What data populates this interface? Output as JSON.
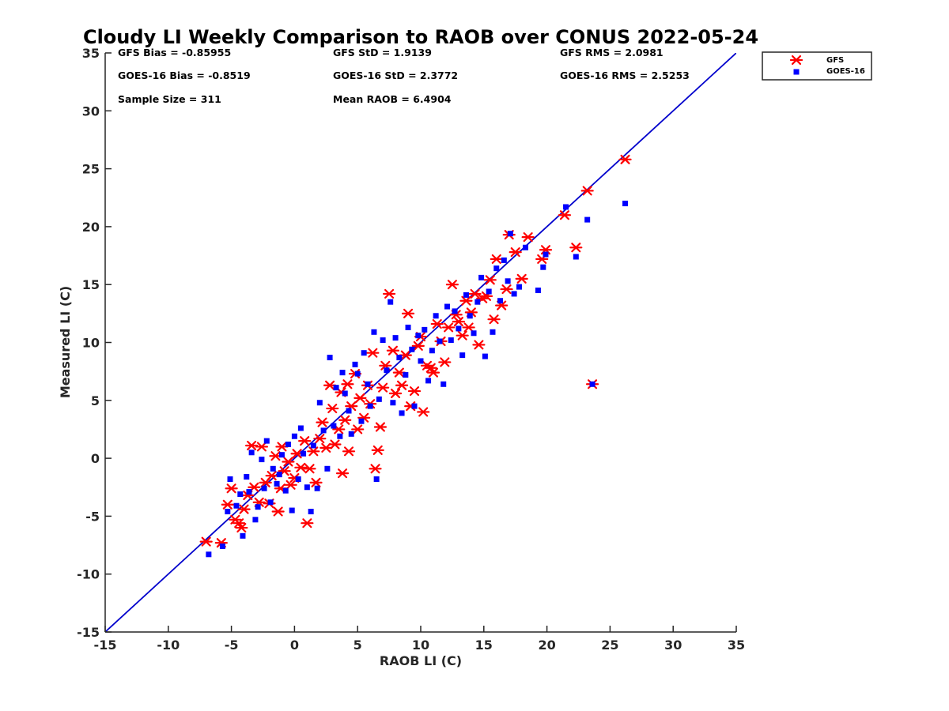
{
  "chart_data": {
    "type": "scatter",
    "title": "Cloudy LI Weekly Comparison to RAOB over CONUS 2022-05-24",
    "xlabel": "RAOB LI (C)",
    "ylabel": "Measured LI (C)",
    "xlim": [
      -15,
      35
    ],
    "ylim": [
      -15,
      35
    ],
    "xticks": [
      "-15",
      "-10",
      "-5",
      "0",
      "5",
      "10",
      "15",
      "20",
      "25",
      "30",
      "35"
    ],
    "yticks": [
      "-15",
      "-10",
      "-5",
      "0",
      "5",
      "10",
      "15",
      "20",
      "25",
      "30",
      "35"
    ],
    "grid": false,
    "legend_position": "top-right, outside axes",
    "reference_line": {
      "type": "one-to-one",
      "color": "#0000cc"
    },
    "stats": [
      "GFS Bias = -0.85955",
      "GFS StD = 1.9139",
      "GFS RMS = 2.0981",
      "GOES-16 Bias = -0.8519",
      "GOES-16 StD = 2.3772",
      "GOES-16 RMS = 2.5253",
      "Sample Size = 311",
      "Mean RAOB = 6.4904"
    ],
    "series": [
      {
        "name": "GFS",
        "marker": "asterisk",
        "color": "#ff0000",
        "points": [
          [
            -7,
            -7.2
          ],
          [
            -5.8,
            -7.3
          ],
          [
            -5.3,
            -4
          ],
          [
            -5,
            -2.6
          ],
          [
            -4.7,
            -5.3
          ],
          [
            -4.4,
            -5.6
          ],
          [
            -4.2,
            -6
          ],
          [
            -4,
            -4.4
          ],
          [
            -3.7,
            -3.2
          ],
          [
            -3.4,
            1.1
          ],
          [
            -3.2,
            -2.5
          ],
          [
            -2.8,
            -3.8
          ],
          [
            -2.6,
            1
          ],
          [
            -2.3,
            -2.1
          ],
          [
            -2,
            -3.9
          ],
          [
            -1.8,
            -1.5
          ],
          [
            -1.5,
            0.2
          ],
          [
            -1.3,
            -4.6
          ],
          [
            -1.1,
            -2.6
          ],
          [
            -1,
            1
          ],
          [
            -0.8,
            -1.1
          ],
          [
            -0.5,
            -0.3
          ],
          [
            -0.3,
            -2.3
          ],
          [
            0,
            -1.7
          ],
          [
            0.2,
            0.4
          ],
          [
            0.5,
            -0.8
          ],
          [
            0.8,
            1.5
          ],
          [
            1,
            -5.6
          ],
          [
            1.2,
            -0.9
          ],
          [
            1.5,
            0.6
          ],
          [
            1.7,
            -2.1
          ],
          [
            2,
            1.7
          ],
          [
            2.2,
            3.1
          ],
          [
            2.5,
            0.9
          ],
          [
            2.8,
            6.3
          ],
          [
            3,
            4.3
          ],
          [
            3.2,
            1.2
          ],
          [
            3.5,
            2.5
          ],
          [
            3.7,
            5.7
          ],
          [
            3.8,
            -1.3
          ],
          [
            4,
            3.3
          ],
          [
            4.2,
            6.4
          ],
          [
            4.3,
            0.6
          ],
          [
            4.5,
            4.5
          ],
          [
            4.8,
            7.3
          ],
          [
            5,
            2.5
          ],
          [
            5.2,
            5.2
          ],
          [
            5.5,
            3.5
          ],
          [
            5.8,
            6.3
          ],
          [
            6,
            4.7
          ],
          [
            6.2,
            9.1
          ],
          [
            6.4,
            -0.9
          ],
          [
            6.6,
            0.7
          ],
          [
            6.8,
            2.7
          ],
          [
            7,
            6.1
          ],
          [
            7.2,
            8
          ],
          [
            7.5,
            14.2
          ],
          [
            7.8,
            9.3
          ],
          [
            8,
            5.6
          ],
          [
            8.3,
            7.4
          ],
          [
            8.5,
            6.3
          ],
          [
            8.8,
            8.9
          ],
          [
            9,
            12.5
          ],
          [
            9.2,
            4.5
          ],
          [
            9.5,
            5.8
          ],
          [
            9.8,
            9.7
          ],
          [
            10,
            10.5
          ],
          [
            10.2,
            4
          ],
          [
            10.5,
            8
          ],
          [
            10.8,
            7.8
          ],
          [
            11,
            7.4
          ],
          [
            11.3,
            11.6
          ],
          [
            11.6,
            10.1
          ],
          [
            11.9,
            8.3
          ],
          [
            12.2,
            11.3
          ],
          [
            12.5,
            15
          ],
          [
            12.8,
            12.4
          ],
          [
            13,
            11.8
          ],
          [
            13.3,
            10.6
          ],
          [
            13.6,
            13.6
          ],
          [
            13.8,
            11.3
          ],
          [
            14,
            12.6
          ],
          [
            14.3,
            14.2
          ],
          [
            14.6,
            9.8
          ],
          [
            14.9,
            13.8
          ],
          [
            15.2,
            14
          ],
          [
            15.5,
            15.4
          ],
          [
            15.8,
            12
          ],
          [
            16,
            17.2
          ],
          [
            16.4,
            13.2
          ],
          [
            16.8,
            14.6
          ],
          [
            17,
            19.3
          ],
          [
            17.5,
            17.8
          ],
          [
            18,
            15.5
          ],
          [
            18.5,
            19.1
          ],
          [
            19.6,
            17.2
          ],
          [
            19.9,
            18
          ],
          [
            21.4,
            21
          ],
          [
            22.3,
            18.2
          ],
          [
            23.2,
            23.1
          ],
          [
            23.6,
            6.4
          ],
          [
            26.2,
            25.8
          ]
        ]
      },
      {
        "name": "GOES-16",
        "marker": "square",
        "color": "#0000ff",
        "points": [
          [
            -6.8,
            -8.3
          ],
          [
            -5.7,
            -7.6
          ],
          [
            -5.3,
            -4.6
          ],
          [
            -5.1,
            -1.8
          ],
          [
            -4.6,
            -4.1
          ],
          [
            -4.3,
            -3.1
          ],
          [
            -4.1,
            -6.7
          ],
          [
            -3.8,
            -1.6
          ],
          [
            -3.6,
            -2.9
          ],
          [
            -3.4,
            0.5
          ],
          [
            -3.1,
            -5.3
          ],
          [
            -2.9,
            -4.2
          ],
          [
            -2.6,
            -0.1
          ],
          [
            -2.4,
            -2.6
          ],
          [
            -2.2,
            1.5
          ],
          [
            -1.9,
            -3.8
          ],
          [
            -1.7,
            -0.9
          ],
          [
            -1.4,
            -2.2
          ],
          [
            -1.2,
            -1.4
          ],
          [
            -1,
            0.3
          ],
          [
            -0.7,
            -2.8
          ],
          [
            -0.5,
            1.2
          ],
          [
            -0.2,
            -4.5
          ],
          [
            0,
            1.9
          ],
          [
            0.3,
            -1.8
          ],
          [
            0.5,
            2.6
          ],
          [
            0.7,
            0.4
          ],
          [
            1,
            -2.5
          ],
          [
            1.3,
            -4.6
          ],
          [
            1.5,
            1.1
          ],
          [
            1.8,
            -2.6
          ],
          [
            2,
            4.8
          ],
          [
            2.3,
            2.4
          ],
          [
            2.6,
            -0.9
          ],
          [
            2.8,
            8.7
          ],
          [
            3.1,
            2.8
          ],
          [
            3.3,
            6.1
          ],
          [
            3.6,
            1.9
          ],
          [
            3.8,
            7.4
          ],
          [
            4,
            5.6
          ],
          [
            4.3,
            4.1
          ],
          [
            4.5,
            2.1
          ],
          [
            4.8,
            8.1
          ],
          [
            5,
            7.3
          ],
          [
            5.3,
            3.2
          ],
          [
            5.5,
            9.1
          ],
          [
            5.8,
            6.4
          ],
          [
            6,
            4.5
          ],
          [
            6.3,
            10.9
          ],
          [
            6.5,
            -1.8
          ],
          [
            6.7,
            5.1
          ],
          [
            7,
            10.2
          ],
          [
            7.3,
            7.6
          ],
          [
            7.6,
            13.5
          ],
          [
            7.8,
            4.8
          ],
          [
            8,
            10.4
          ],
          [
            8.3,
            8.7
          ],
          [
            8.5,
            3.9
          ],
          [
            8.8,
            7.2
          ],
          [
            9,
            11.3
          ],
          [
            9.3,
            9.4
          ],
          [
            9.5,
            4.5
          ],
          [
            9.8,
            10.6
          ],
          [
            10,
            8.4
          ],
          [
            10.3,
            11.1
          ],
          [
            10.6,
            6.7
          ],
          [
            10.9,
            9.3
          ],
          [
            11.2,
            12.3
          ],
          [
            11.5,
            10.1
          ],
          [
            11.8,
            6.4
          ],
          [
            12.1,
            13.1
          ],
          [
            12.4,
            10.2
          ],
          [
            12.7,
            12.7
          ],
          [
            13,
            11.2
          ],
          [
            13.3,
            8.9
          ],
          [
            13.6,
            14.1
          ],
          [
            13.9,
            12.3
          ],
          [
            14.2,
            10.8
          ],
          [
            14.5,
            13.5
          ],
          [
            14.8,
            15.6
          ],
          [
            15.1,
            8.8
          ],
          [
            15.4,
            14.4
          ],
          [
            15.7,
            10.9
          ],
          [
            16,
            16.4
          ],
          [
            16.3,
            13.6
          ],
          [
            16.6,
            17.1
          ],
          [
            16.9,
            15.3
          ],
          [
            17.1,
            19.4
          ],
          [
            17.4,
            14.2
          ],
          [
            17.8,
            14.8
          ],
          [
            18.3,
            18.2
          ],
          [
            19.3,
            14.5
          ],
          [
            19.7,
            16.5
          ],
          [
            19.9,
            17.6
          ],
          [
            21.5,
            21.7
          ],
          [
            22.3,
            17.4
          ],
          [
            23.2,
            20.6
          ],
          [
            23.6,
            6.4
          ],
          [
            26.2,
            22
          ]
        ]
      }
    ]
  }
}
